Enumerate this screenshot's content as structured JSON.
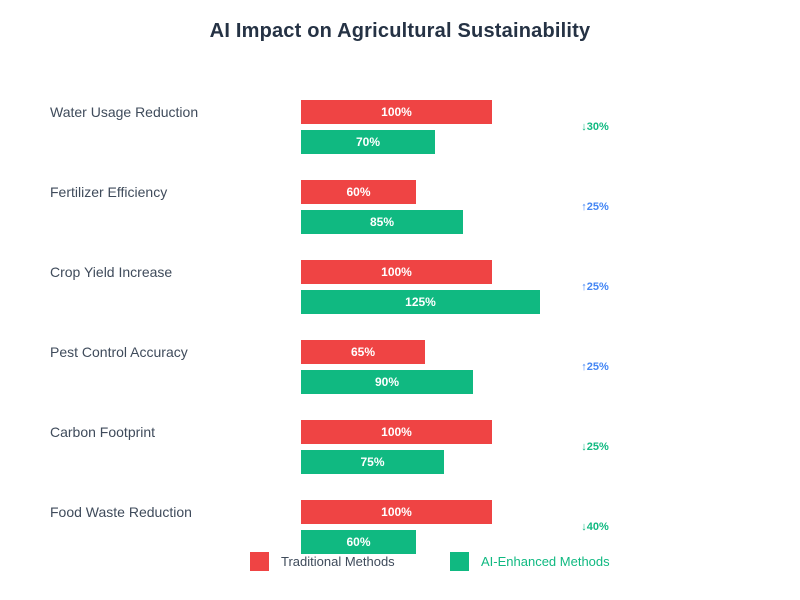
{
  "title": "AI Impact on Agricultural Sustainability",
  "colors": {
    "traditional": "#ef4444",
    "ai_enhanced": "#10b981",
    "improvement_up": "#4285f4",
    "improvement_down": "#10b981",
    "title_text": "#253244",
    "category_text": "#3f4b5b",
    "bar_value_text": "#ffffff"
  },
  "chart_data": {
    "type": "bar",
    "orientation": "horizontal",
    "title": "AI Impact on Agricultural Sustainability",
    "xlabel": "",
    "ylabel": "",
    "xlim": [
      0,
      130
    ],
    "grid": false,
    "legend_position": "bottom",
    "value_suffix": "%",
    "categories": [
      "Water Usage Reduction",
      "Fertilizer Efficiency",
      "Crop Yield Increase",
      "Pest Control Accuracy",
      "Carbon Footprint",
      "Food Waste Reduction"
    ],
    "series": [
      {
        "name": "Traditional Methods",
        "color": "#ef4444",
        "values": [
          100,
          60,
          100,
          65,
          100,
          100
        ],
        "labels": [
          "100%",
          "60%",
          "100%",
          "65%",
          "100%",
          "100%"
        ]
      },
      {
        "name": "AI-Enhanced Methods",
        "color": "#10b981",
        "values": [
          70,
          85,
          125,
          90,
          75,
          60
        ],
        "labels": [
          "70%",
          "85%",
          "125%",
          "90%",
          "75%",
          "60%"
        ]
      }
    ],
    "annotations": [
      {
        "label": "↓30%",
        "direction": "down",
        "value": 30,
        "color": "#10b981"
      },
      {
        "label": "↑25%",
        "direction": "up",
        "value": 25,
        "color": "#4285f4"
      },
      {
        "label": "↑25%",
        "direction": "up",
        "value": 25,
        "color": "#4285f4"
      },
      {
        "label": "↑25%",
        "direction": "up",
        "value": 25,
        "color": "#4285f4"
      },
      {
        "label": "↓25%",
        "direction": "down",
        "value": 25,
        "color": "#10b981"
      },
      {
        "label": "↓40%",
        "direction": "down",
        "value": 40,
        "color": "#10b981"
      }
    ]
  },
  "legend": {
    "traditional_label": "Traditional Methods",
    "ai_label": "AI-Enhanced Methods",
    "traditional_text_color": "#3f4b5b",
    "ai_text_color": "#10b981"
  }
}
